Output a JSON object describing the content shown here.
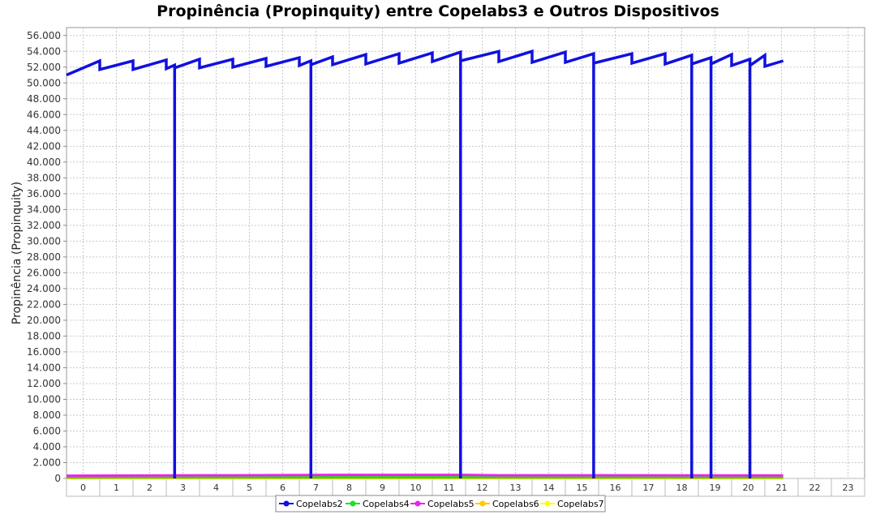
{
  "chart_data": {
    "type": "line",
    "title": "Propinência (Propinquity) entre Copelabs3 e Outros Dispositivos",
    "xlabel": "",
    "ylabel": "Propinência (Propinquity)",
    "categories": [
      "0",
      "1",
      "2",
      "3",
      "4",
      "5",
      "6",
      "7",
      "8",
      "9",
      "10",
      "11",
      "12",
      "13",
      "14",
      "15",
      "16",
      "17",
      "18",
      "19",
      "20",
      "21",
      "22",
      "23"
    ],
    "yticks": [
      "0",
      "2.000",
      "4.000",
      "6.000",
      "8.000",
      "10.000",
      "12.000",
      "14.000",
      "16.000",
      "18.000",
      "20.000",
      "22.000",
      "24.000",
      "26.000",
      "28.000",
      "30.000",
      "32.000",
      "34.000",
      "36.000",
      "38.000",
      "40.000",
      "42.000",
      "44.000",
      "46.000",
      "48.000",
      "50.000",
      "52.000",
      "54.000",
      "56.000"
    ],
    "ylim": [
      0,
      57000
    ],
    "xlim": [
      -0.5,
      23.5
    ],
    "grid": true,
    "legend_position": "bottom",
    "series": [
      {
        "name": "Copelabs2",
        "color": "#1010e0",
        "x": [
          -0.5,
          0.5,
          0.5,
          1.5,
          1.5,
          2.5,
          2.5,
          2.75,
          2.75,
          2.75,
          3.5,
          3.5,
          4.5,
          4.5,
          5.5,
          5.5,
          6.5,
          6.5,
          6.85,
          6.85,
          6.85,
          7.5,
          7.5,
          8.5,
          8.5,
          9.5,
          9.5,
          10.5,
          10.5,
          11.35,
          11.35,
          11.35,
          12.5,
          12.5,
          13.5,
          13.5,
          14.5,
          14.5,
          15.35,
          15.35,
          15.35,
          16.5,
          16.5,
          17.5,
          17.5,
          18.3,
          18.3,
          18.3,
          18.88,
          18.88,
          18.88,
          19.5,
          19.5,
          20.05,
          20.05,
          20.05,
          20.5,
          20.5,
          21.05
        ],
        "y": [
          51000,
          52800,
          51700,
          52800,
          51700,
          52900,
          51800,
          52250,
          0,
          51900,
          53000,
          51900,
          53000,
          52000,
          53100,
          52100,
          53200,
          52200,
          52800,
          0,
          52300,
          53300,
          52300,
          53600,
          52400,
          53700,
          52500,
          53800,
          52700,
          53900,
          0,
          52800,
          54000,
          52700,
          54000,
          52600,
          53900,
          52600,
          53700,
          0,
          52500,
          53700,
          52500,
          53700,
          52400,
          53500,
          0,
          52400,
          53200,
          0,
          52400,
          53600,
          52200,
          53000,
          0,
          52200,
          53500,
          52100,
          52800
        ]
      },
      {
        "name": "Copelabs4",
        "color": "#22dd22",
        "x": [
          -0.5,
          21.05
        ],
        "y": [
          150,
          150
        ]
      },
      {
        "name": "Copelabs5",
        "color": "#ee22ee",
        "x": [
          -0.5,
          4.5,
          7.5,
          11.5,
          12.5,
          21.05
        ],
        "y": [
          350,
          400,
          450,
          450,
          400,
          380
        ]
      },
      {
        "name": "Copelabs6",
        "color": "#ffc800",
        "x": [
          -0.5,
          21.05
        ],
        "y": [
          60,
          60
        ]
      },
      {
        "name": "Copelabs7",
        "color": "#ffff00",
        "x": [
          -0.5,
          21.05
        ],
        "y": [
          30,
          30
        ]
      }
    ]
  }
}
